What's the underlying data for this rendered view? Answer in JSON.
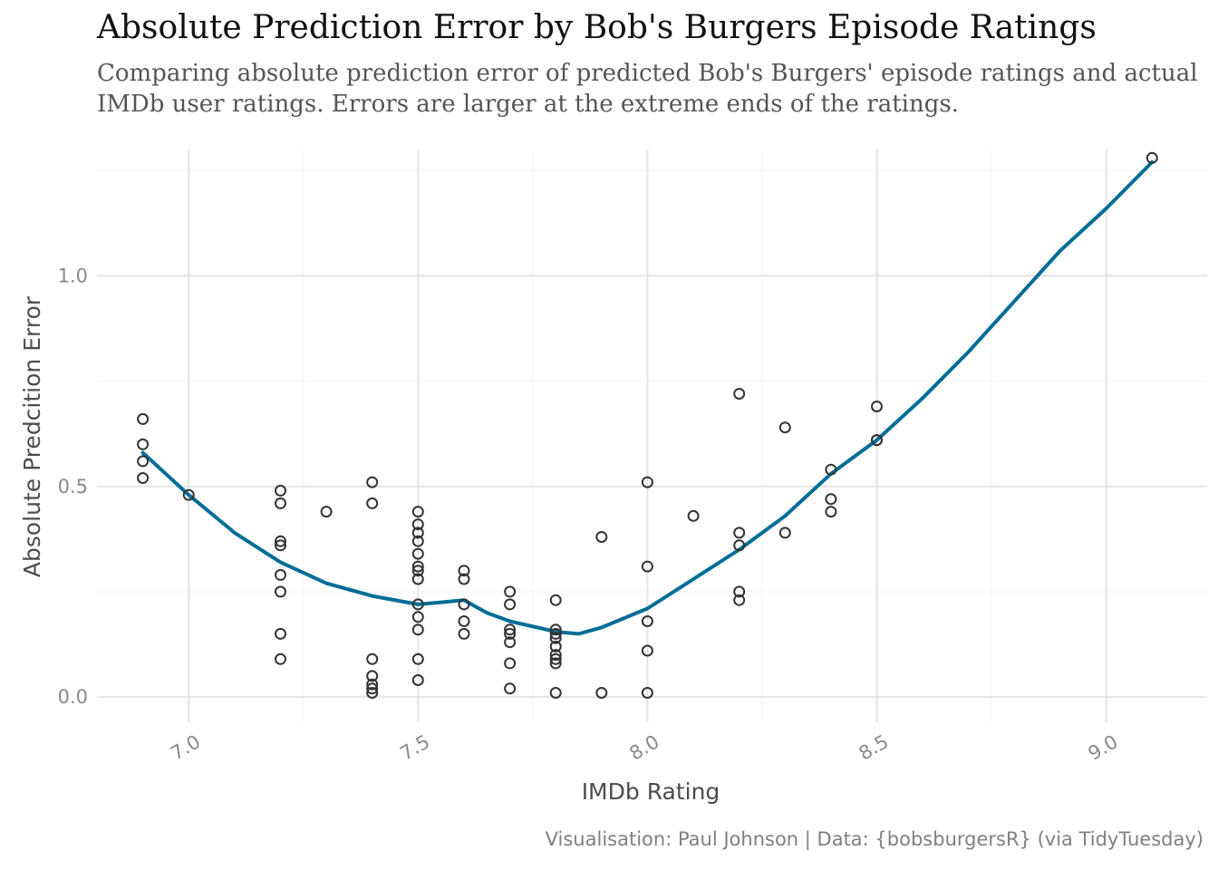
{
  "title": "Absolute Prediction Error by Bob's Burgers Episode Ratings",
  "subtitle": "Comparing absolute prediction error of predicted Bob's Burgers' episode ratings and actual IMDb user ratings. Errors are larger at the extreme ends of the ratings.",
  "caption": "Visualisation: Paul Johnson | Data: {bobsburgersR} (via TidyTuesday)",
  "colors": {
    "line": "#006d96",
    "point": "#333333",
    "grid": "#e4e4e4",
    "tick_text": "#8a8a8a"
  },
  "chart_data": {
    "type": "scatter",
    "xlabel": "IMDb Rating",
    "ylabel": "Absolute Predcition Error",
    "xlim": [
      6.8,
      9.22
    ],
    "ylim": [
      -0.06,
      1.3
    ],
    "xticks": [
      7.0,
      7.5,
      8.0,
      8.5,
      9.0
    ],
    "xtick_labels": [
      "7.0",
      "7.5",
      "8.0",
      "8.5",
      "9.0"
    ],
    "yticks": [
      0.0,
      0.5,
      1.0
    ],
    "ytick_labels": [
      "0.0",
      "0.5",
      "1.0"
    ],
    "grid": true,
    "points": [
      [
        6.9,
        0.66
      ],
      [
        6.9,
        0.6
      ],
      [
        6.9,
        0.56
      ],
      [
        6.9,
        0.52
      ],
      [
        7.0,
        0.48
      ],
      [
        7.2,
        0.49
      ],
      [
        7.2,
        0.46
      ],
      [
        7.2,
        0.37
      ],
      [
        7.2,
        0.36
      ],
      [
        7.2,
        0.29
      ],
      [
        7.2,
        0.25
      ],
      [
        7.2,
        0.15
      ],
      [
        7.2,
        0.09
      ],
      [
        7.3,
        0.44
      ],
      [
        7.4,
        0.51
      ],
      [
        7.4,
        0.46
      ],
      [
        7.4,
        0.09
      ],
      [
        7.4,
        0.05
      ],
      [
        7.4,
        0.03
      ],
      [
        7.4,
        0.02
      ],
      [
        7.4,
        0.01
      ],
      [
        7.5,
        0.44
      ],
      [
        7.5,
        0.41
      ],
      [
        7.5,
        0.39
      ],
      [
        7.5,
        0.37
      ],
      [
        7.5,
        0.34
      ],
      [
        7.5,
        0.31
      ],
      [
        7.5,
        0.3
      ],
      [
        7.5,
        0.28
      ],
      [
        7.5,
        0.22
      ],
      [
        7.5,
        0.19
      ],
      [
        7.5,
        0.16
      ],
      [
        7.5,
        0.09
      ],
      [
        7.5,
        0.04
      ],
      [
        7.6,
        0.3
      ],
      [
        7.6,
        0.28
      ],
      [
        7.6,
        0.22
      ],
      [
        7.6,
        0.18
      ],
      [
        7.6,
        0.15
      ],
      [
        7.7,
        0.25
      ],
      [
        7.7,
        0.22
      ],
      [
        7.7,
        0.16
      ],
      [
        7.7,
        0.15
      ],
      [
        7.7,
        0.13
      ],
      [
        7.7,
        0.08
      ],
      [
        7.7,
        0.02
      ],
      [
        7.8,
        0.23
      ],
      [
        7.8,
        0.16
      ],
      [
        7.8,
        0.15
      ],
      [
        7.8,
        0.14
      ],
      [
        7.8,
        0.12
      ],
      [
        7.8,
        0.1
      ],
      [
        7.8,
        0.09
      ],
      [
        7.8,
        0.08
      ],
      [
        7.8,
        0.01
      ],
      [
        7.9,
        0.38
      ],
      [
        7.9,
        0.01
      ],
      [
        8.0,
        0.51
      ],
      [
        8.0,
        0.31
      ],
      [
        8.0,
        0.18
      ],
      [
        8.0,
        0.11
      ],
      [
        8.0,
        0.01
      ],
      [
        8.1,
        0.43
      ],
      [
        8.2,
        0.72
      ],
      [
        8.2,
        0.39
      ],
      [
        8.2,
        0.36
      ],
      [
        8.2,
        0.25
      ],
      [
        8.2,
        0.23
      ],
      [
        8.3,
        0.64
      ],
      [
        8.3,
        0.39
      ],
      [
        8.4,
        0.54
      ],
      [
        8.4,
        0.47
      ],
      [
        8.4,
        0.44
      ],
      [
        8.5,
        0.69
      ],
      [
        8.5,
        0.61
      ],
      [
        8.5,
        0.61
      ],
      [
        9.1,
        1.28
      ]
    ],
    "smooth_line": [
      [
        6.9,
        0.58
      ],
      [
        6.95,
        0.53
      ],
      [
        7.0,
        0.48
      ],
      [
        7.1,
        0.39
      ],
      [
        7.2,
        0.32
      ],
      [
        7.3,
        0.27
      ],
      [
        7.4,
        0.24
      ],
      [
        7.5,
        0.22
      ],
      [
        7.55,
        0.225
      ],
      [
        7.6,
        0.23
      ],
      [
        7.65,
        0.2
      ],
      [
        7.7,
        0.18
      ],
      [
        7.8,
        0.155
      ],
      [
        7.85,
        0.15
      ],
      [
        7.9,
        0.165
      ],
      [
        8.0,
        0.21
      ],
      [
        8.1,
        0.28
      ],
      [
        8.2,
        0.35
      ],
      [
        8.3,
        0.43
      ],
      [
        8.4,
        0.53
      ],
      [
        8.5,
        0.61
      ],
      [
        8.6,
        0.71
      ],
      [
        8.7,
        0.82
      ],
      [
        8.8,
        0.94
      ],
      [
        8.9,
        1.06
      ],
      [
        9.0,
        1.16
      ],
      [
        9.1,
        1.27
      ]
    ]
  }
}
